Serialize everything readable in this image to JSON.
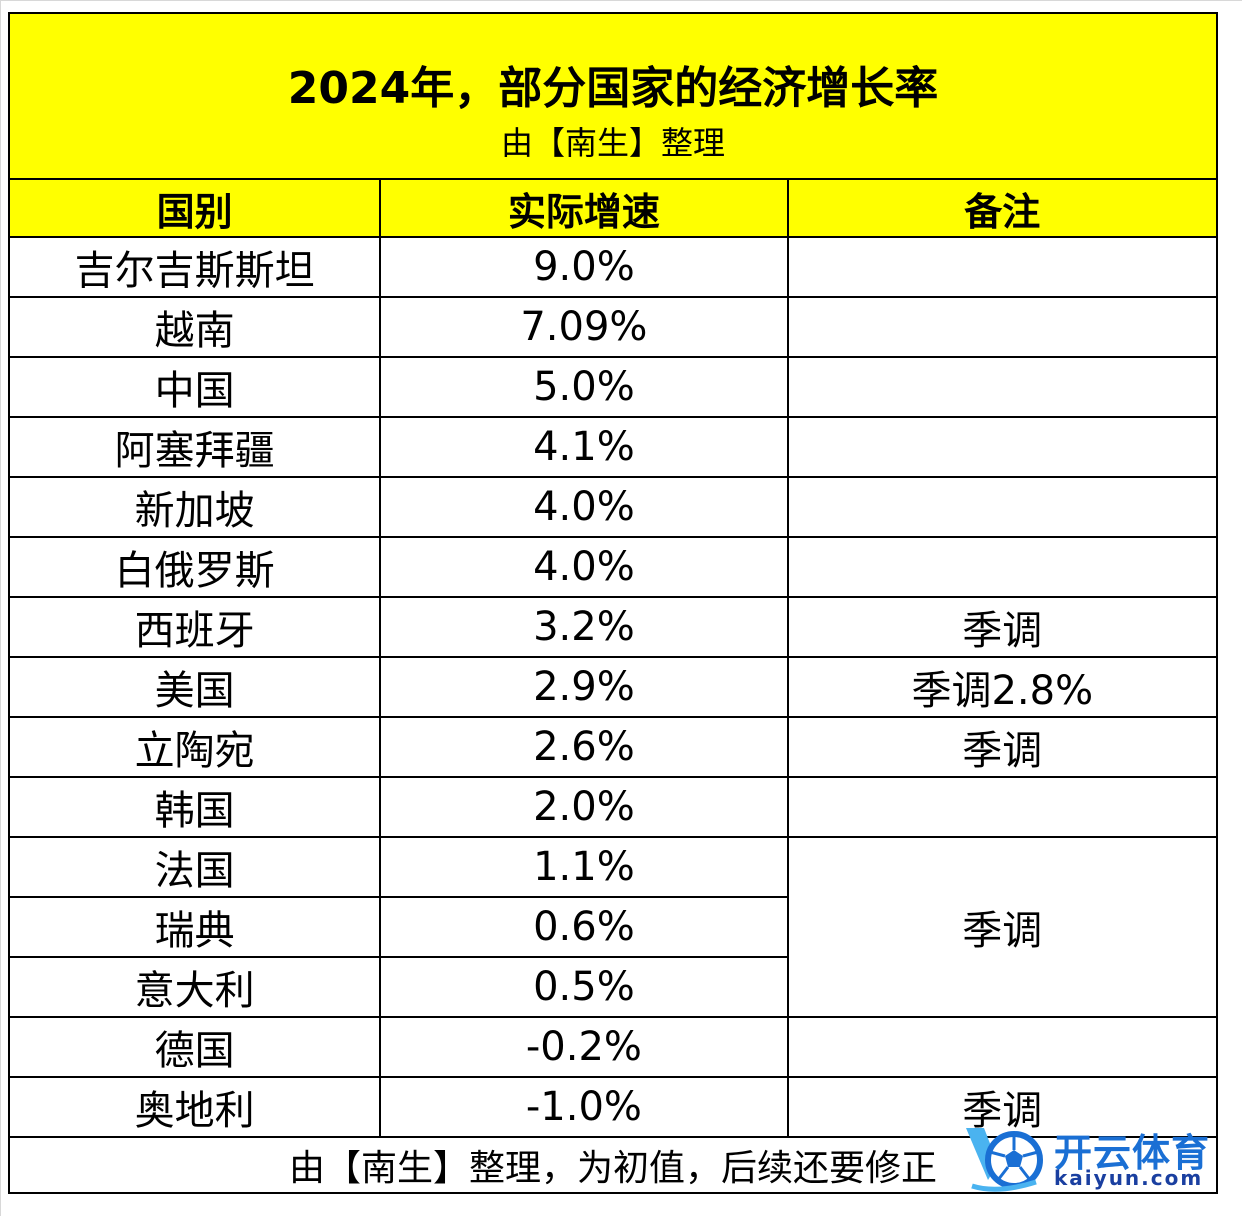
{
  "header": {
    "title": "2024年，部分国家的经济增长率",
    "subtitle": "由【南生】整理"
  },
  "columns": [
    "国别",
    "实际增速",
    "备注"
  ],
  "rows": [
    {
      "country": "吉尔吉斯斯坦",
      "growth": "9.0%",
      "note": ""
    },
    {
      "country": "越南",
      "growth": "7.09%",
      "note": ""
    },
    {
      "country": "中国",
      "growth": "5.0%",
      "note": ""
    },
    {
      "country": "阿塞拜疆",
      "growth": "4.1%",
      "note": ""
    },
    {
      "country": "新加坡",
      "growth": "4.0%",
      "note": ""
    },
    {
      "country": "白俄罗斯",
      "growth": "4.0%",
      "note": ""
    },
    {
      "country": "西班牙",
      "growth": "3.2%",
      "note": "季调"
    },
    {
      "country": "美国",
      "growth": "2.9%",
      "note": "季调2.8%"
    },
    {
      "country": "立陶宛",
      "growth": "2.6%",
      "note": "季调"
    },
    {
      "country": "韩国",
      "growth": "2.0%",
      "note": ""
    },
    {
      "country": "法国",
      "growth": "1.1%",
      "note": "季调"
    },
    {
      "country": "瑞典",
      "growth": "0.6%",
      "note": null
    },
    {
      "country": "意大利",
      "growth": "0.5%",
      "note": null
    },
    {
      "country": "德国",
      "growth": "-0.2%",
      "note": ""
    },
    {
      "country": "奥地利",
      "growth": "-1.0%",
      "note": "季调"
    }
  ],
  "footer": "由【南生】整理，为初值，后续还要修正",
  "watermark": {
    "brand": "开云体育",
    "domain": "kaiyun.com",
    "colors": {
      "primary": "#1a6fd4",
      "dark": "#1a3fa0",
      "light": "#4ab3f0"
    }
  }
}
